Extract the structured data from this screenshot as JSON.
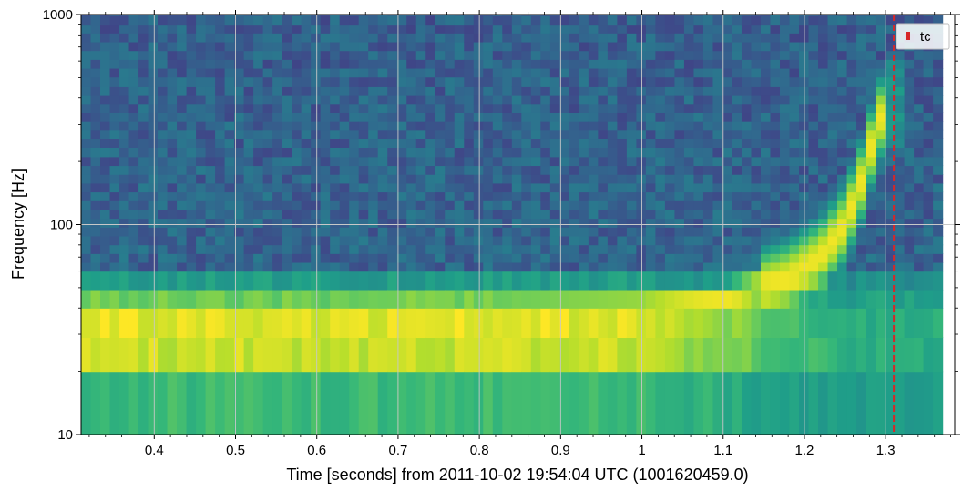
{
  "chart_data": {
    "type": "heatmap",
    "xlabel": "Time [seconds] from 2011-10-02 19:54:04 UTC (1001620459.0)",
    "ylabel": "Frequency [Hz]",
    "xlim": [
      0.31,
      1.385
    ],
    "ylim": [
      10,
      1000
    ],
    "yscale": "log",
    "x_ticks": [
      0.4,
      0.5,
      0.6,
      0.7,
      0.8,
      0.9,
      1,
      1.1,
      1.2,
      1.3
    ],
    "x_tick_labels": [
      "0.4",
      "0.5",
      "0.6",
      "0.7",
      "0.8",
      "0.9",
      "1",
      "1.1",
      "1.2",
      "1.3"
    ],
    "y_ticks": [
      10,
      100,
      1000
    ],
    "y_tick_labels": [
      "10",
      "100",
      "1000"
    ],
    "grid": true,
    "colormap": "viridis",
    "data_x_range": [
      0.31,
      1.37
    ],
    "time_bins": 90,
    "freq_bands": [
      {
        "f_low": 10,
        "f_high": 20,
        "level": 0.68
      },
      {
        "f_low": 20,
        "f_high": 29,
        "level": 0.92
      },
      {
        "f_low": 29,
        "f_high": 40,
        "level": 0.96
      },
      {
        "f_low": 40,
        "f_high": 49,
        "level": 0.78
      },
      {
        "f_low": 49,
        "f_high": 60,
        "level": 0.55
      }
    ],
    "chirp_track": [
      {
        "t": 0.31,
        "f": 36
      },
      {
        "t": 1.0,
        "f": 40
      },
      {
        "t": 1.1,
        "f": 44
      },
      {
        "t": 1.18,
        "f": 55
      },
      {
        "t": 1.22,
        "f": 70
      },
      {
        "t": 1.25,
        "f": 100
      },
      {
        "t": 1.27,
        "f": 160
      },
      {
        "t": 1.285,
        "f": 260
      },
      {
        "t": 1.3,
        "f": 380
      }
    ],
    "annotations": [
      {
        "type": "vline",
        "x": 1.31,
        "label": "tc",
        "color": "#d62728",
        "style": "dashed"
      }
    ],
    "legend": {
      "position": "top-right",
      "entries": [
        {
          "label": "tc",
          "color": "#d62728"
        }
      ]
    }
  }
}
